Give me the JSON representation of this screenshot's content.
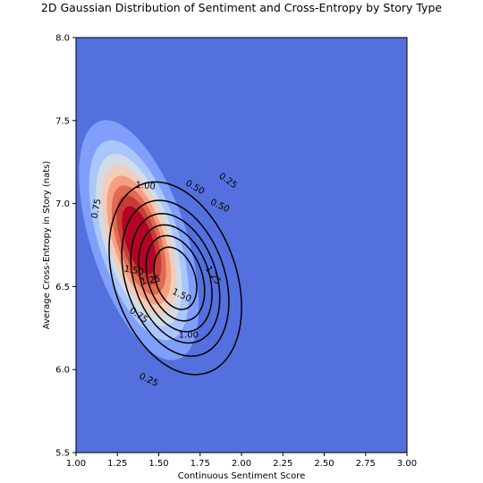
{
  "chart_data": {
    "type": "contour",
    "title": "2D Gaussian Distribution of Sentiment and Cross-Entropy by Story Type",
    "xlabel": "Continuous Sentiment Score",
    "ylabel": "Average Cross-Entropy in Story (nats)",
    "xlim": [
      1.0,
      3.0
    ],
    "ylim": [
      5.5,
      8.0
    ],
    "xticks": [
      "1.00",
      "1.25",
      "1.50",
      "1.75",
      "2.00",
      "2.25",
      "2.50",
      "2.75",
      "3.00"
    ],
    "yticks": [
      "5.5",
      "6.0",
      "6.5",
      "7.0",
      "7.5",
      "8.0"
    ],
    "grid": false,
    "colormap": "coolwarm",
    "filled_density": {
      "center": [
        1.38,
        6.78
      ],
      "sigma": [
        0.17,
        0.34
      ],
      "correlation": -0.55,
      "peak": 2.4,
      "levels": [
        0.25,
        0.5,
        0.75,
        1.0,
        1.25,
        1.5,
        1.75,
        2.0,
        2.25
      ],
      "fill_colors": [
        "#5470de",
        "#7f9ffa",
        "#aac7fd",
        "#d3dbe7",
        "#f1cdba",
        "#f5a081",
        "#e06a53",
        "#c73c35",
        "#b40426"
      ]
    },
    "line_density": {
      "center": [
        1.6,
        6.55
      ],
      "sigma": [
        0.2,
        0.29
      ],
      "correlation": -0.3,
      "peak": 1.85,
      "levels": [
        0.25,
        0.5,
        0.75,
        1.0,
        1.25,
        1.5
      ],
      "line_color": "#000000"
    },
    "contour_labels": [
      {
        "text": "0.25",
        "x": 1.92,
        "y": 7.14,
        "angle": 35
      },
      {
        "text": "0.50",
        "x": 1.72,
        "y": 7.1,
        "angle": 30
      },
      {
        "text": "0.50",
        "x": 1.87,
        "y": 6.99,
        "angle": 25
      },
      {
        "text": "0.75",
        "x": 1.12,
        "y": 6.97,
        "angle": -80
      },
      {
        "text": "1.00",
        "x": 1.42,
        "y": 7.11,
        "angle": 5
      },
      {
        "text": "1.50",
        "x": 1.35,
        "y": 6.6,
        "angle": 10
      },
      {
        "text": "1.25",
        "x": 1.45,
        "y": 6.54,
        "angle": -10
      },
      {
        "text": "1.25",
        "x": 1.83,
        "y": 6.57,
        "angle": 55
      },
      {
        "text": "1.50",
        "x": 1.64,
        "y": 6.45,
        "angle": 25
      },
      {
        "text": "0.75",
        "x": 1.38,
        "y": 6.33,
        "angle": 35
      },
      {
        "text": "1.00",
        "x": 1.68,
        "y": 6.21,
        "angle": 0
      },
      {
        "text": "0.25",
        "x": 1.44,
        "y": 5.94,
        "angle": 25
      }
    ]
  }
}
